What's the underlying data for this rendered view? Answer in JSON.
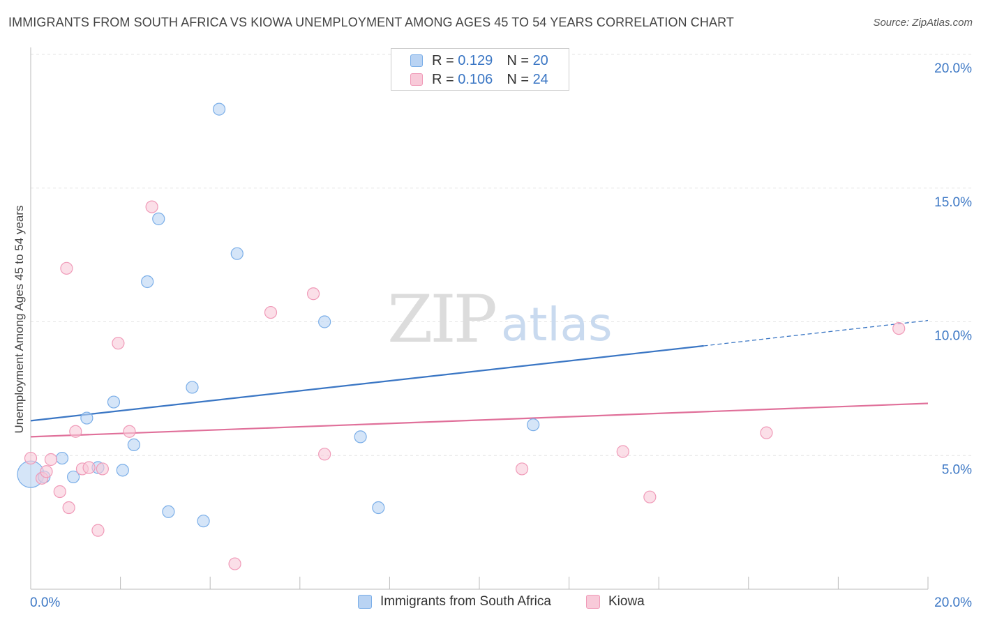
{
  "title": "IMMIGRANTS FROM SOUTH AFRICA VS KIOWA UNEMPLOYMENT AMONG AGES 45 TO 54 YEARS CORRELATION CHART",
  "source": "Source: ZipAtlas.com",
  "watermark": {
    "zip": "ZIP",
    "atlas": "atlas"
  },
  "legend_top": [
    {
      "r_label": "R =",
      "r_value": "0.129",
      "n_label": "N =",
      "n_value": "20"
    },
    {
      "r_label": "R =",
      "r_value": "0.106",
      "n_label": "N =",
      "n_value": "24"
    }
  ],
  "chart_data": {
    "type": "scatter",
    "title": "IMMIGRANTS FROM SOUTH AFRICA VS KIOWA UNEMPLOYMENT AMONG AGES 45 TO 54 YEARS CORRELATION CHART",
    "xlabel": "",
    "ylabel": "Unemployment Among Ages 45 to 54 years",
    "xlim": [
      0,
      20
    ],
    "ylim": [
      0,
      20
    ],
    "x_tick_labels": [
      "0.0%",
      "20.0%"
    ],
    "y_tick_labels": [
      "5.0%",
      "10.0%",
      "15.0%",
      "20.0%"
    ],
    "y_ticks": [
      5,
      10,
      15,
      20
    ],
    "x_minor_ticks": [
      0,
      2,
      4,
      6,
      8,
      10,
      12,
      14,
      16,
      18,
      20
    ],
    "grid": true,
    "series": [
      {
        "name": "Immigrants from South Africa",
        "color": "#7aaee8",
        "fill": "#b9d3f3",
        "line_color": "#3a76c4",
        "trend": {
          "x_solid": [
            0,
            15
          ],
          "y_solid": [
            6.3,
            9.1
          ],
          "x_dashed": [
            15,
            20
          ],
          "y_dashed": [
            9.1,
            10.05
          ]
        },
        "points": [
          [
            0.0,
            4.3
          ],
          [
            0.3,
            4.2
          ],
          [
            0.7,
            4.9
          ],
          [
            0.95,
            4.2
          ],
          [
            1.25,
            6.4
          ],
          [
            1.5,
            4.55
          ],
          [
            1.85,
            7.0
          ],
          [
            2.05,
            4.45
          ],
          [
            2.3,
            5.4
          ],
          [
            2.6,
            11.5
          ],
          [
            2.85,
            13.85
          ],
          [
            3.07,
            2.9
          ],
          [
            3.6,
            7.55
          ],
          [
            3.85,
            2.55
          ],
          [
            4.2,
            17.95
          ],
          [
            4.6,
            12.55
          ],
          [
            6.55,
            10.0
          ],
          [
            7.35,
            5.7
          ],
          [
            7.75,
            3.05
          ],
          [
            11.2,
            6.15
          ]
        ]
      },
      {
        "name": "Kiowa",
        "color": "#f09ab8",
        "fill": "#f8cad9",
        "line_color": "#e0709a",
        "trend": {
          "x_solid": [
            0,
            20
          ],
          "y_solid": [
            5.7,
            6.95
          ]
        },
        "points": [
          [
            0.0,
            4.9
          ],
          [
            0.25,
            4.15
          ],
          [
            0.35,
            4.4
          ],
          [
            0.45,
            4.85
          ],
          [
            0.65,
            3.65
          ],
          [
            0.8,
            12.0
          ],
          [
            0.85,
            3.05
          ],
          [
            1.0,
            5.9
          ],
          [
            1.15,
            4.5
          ],
          [
            1.3,
            4.55
          ],
          [
            1.5,
            2.2
          ],
          [
            1.6,
            4.5
          ],
          [
            1.95,
            9.2
          ],
          [
            2.2,
            5.9
          ],
          [
            2.7,
            14.3
          ],
          [
            4.55,
            0.95
          ],
          [
            5.35,
            10.35
          ],
          [
            6.3,
            11.05
          ],
          [
            6.55,
            5.05
          ],
          [
            10.95,
            4.5
          ],
          [
            13.2,
            5.15
          ],
          [
            13.8,
            3.45
          ],
          [
            16.4,
            5.85
          ],
          [
            19.35,
            9.75
          ]
        ]
      }
    ]
  },
  "bottom_legend": [
    {
      "label": "Immigrants from South Africa"
    },
    {
      "label": "Kiowa"
    }
  ],
  "colors": {
    "blue_swatch_fill": "#b9d3f3",
    "blue_swatch_border": "#7aaee8",
    "pink_swatch_fill": "#f8cad9",
    "pink_swatch_border": "#f09ab8",
    "tick_label": "#3a76c4"
  }
}
